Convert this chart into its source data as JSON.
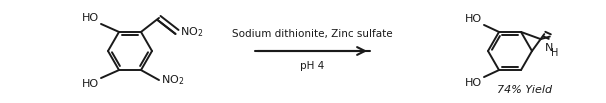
{
  "background_color": "#ffffff",
  "reagent_line1": "Sodium dithionite, Zinc sulfate",
  "reagent_line2": "pH 4",
  "yield_text": "74% Yield",
  "lw": 1.4,
  "font_size_reagent": 7.5,
  "font_size_mol": 8.0,
  "font_size_yield": 8.0,
  "text_color": "#1a1a1a"
}
